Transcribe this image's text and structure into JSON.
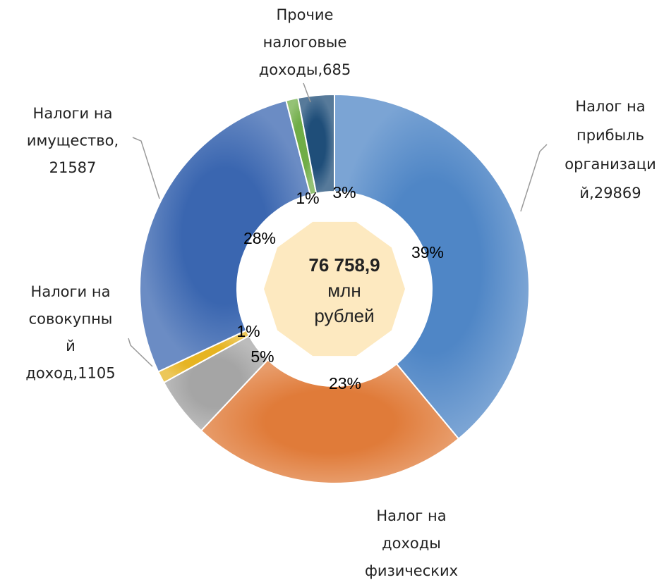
{
  "chart_data": {
    "type": "pie",
    "categories": [
      [
        "Налог на",
        "прибыль",
        "организаци",
        "й,29869"
      ],
      [
        "Налог на",
        "доходы",
        "физических"
      ],
      null,
      [
        "Налоги на",
        "совокупны",
        "й",
        "доход,1105"
      ],
      [
        "Налоги на",
        "имущество,",
        "21587"
      ],
      [
        "Прочие",
        "налоговые",
        "доходы,685"
      ],
      null
    ],
    "values": [
      39,
      23,
      5,
      1,
      28,
      1,
      3
    ],
    "value_labels": [
      "39%",
      "23%",
      "5%",
      "1%",
      "28%",
      "1%",
      "3%"
    ],
    "colors": [
      "#4f86c6",
      "#e07b39",
      "#a5a5a5",
      "#e6b422",
      "#3a66b0",
      "#70ad47",
      "#1f4e79"
    ],
    "center_label": [
      "76 758,9",
      "млн",
      "рублей"
    ]
  }
}
